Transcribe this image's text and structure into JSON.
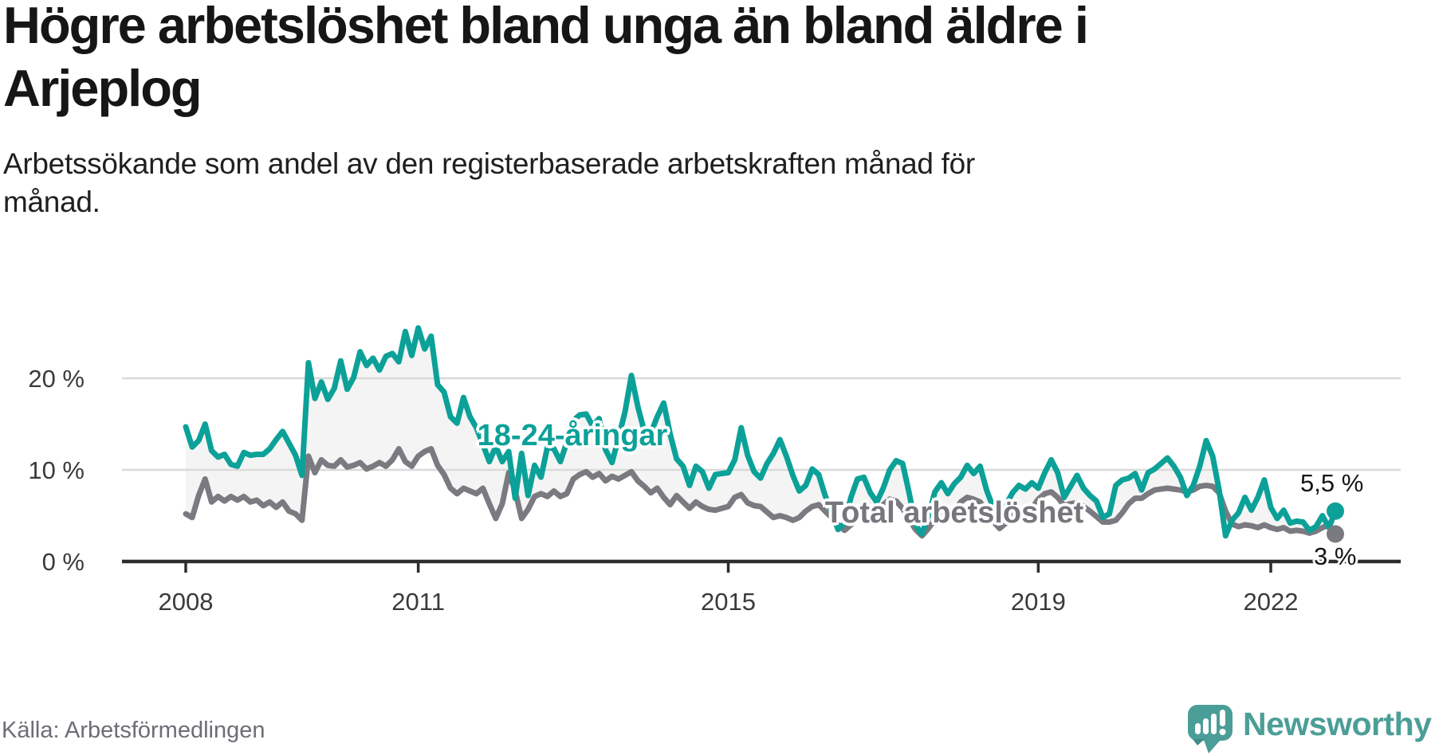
{
  "header": {
    "title_lines": [
      "Högre arbetslöshet bland unga än bland äldre i",
      "Arjeplog"
    ],
    "subtitle_lines": [
      "Arbetssökande som andel av den registerbaserade arbetskraften månad för",
      "månad."
    ]
  },
  "footer": {
    "source": "Källa: Arbetsförmedlingen",
    "brand": "Newsworthy"
  },
  "colors": {
    "youth": "#0ca198",
    "total": "#7a7a80",
    "band": "#f4f4f4",
    "grid": "#d9d9d9",
    "axis": "#2d2d2d",
    "tick_text": "#3a3a3a",
    "brand_teal": "#4b9e97"
  },
  "chart_data": {
    "type": "line",
    "title": "Högre arbetslöshet bland unga än bland äldre i Arjeplog",
    "subtitle": "Arbetssökande som andel av den registerbaserade arbetskraften månad för månad.",
    "x_start": "2008-01",
    "x_end": "2022-11",
    "x_unit": "month",
    "ylim": [
      0,
      27
    ],
    "grid": "horizontal",
    "legend": "inline-labels",
    "x_ticks": [
      {
        "label": "2008",
        "m": 0
      },
      {
        "label": "2011",
        "m": 36
      },
      {
        "label": "2015",
        "m": 84
      },
      {
        "label": "2019",
        "m": 132
      },
      {
        "label": "2022",
        "m": 168
      }
    ],
    "y_ticks": [
      {
        "label": "0 %",
        "v": 0
      },
      {
        "label": "10 %",
        "v": 10
      },
      {
        "label": "20 %",
        "v": 20
      }
    ],
    "series": [
      {
        "name": "18-24-åringar",
        "color": "#0ca198",
        "end_label": "5,5 %",
        "end_value": 5.5,
        "values": [
          14.7,
          12.5,
          13.2,
          15.0,
          12.1,
          11.4,
          11.7,
          10.6,
          10.4,
          11.9,
          11.6,
          11.7,
          11.7,
          12.3,
          13.3,
          14.2,
          12.9,
          11.6,
          9.4,
          21.7,
          17.8,
          19.6,
          17.7,
          18.9,
          21.9,
          18.8,
          20.1,
          22.9,
          21.4,
          22.2,
          20.9,
          22.4,
          22.7,
          21.8,
          25.1,
          22.5,
          25.5,
          23.2,
          24.6,
          19.3,
          18.5,
          15.8,
          15.1,
          17.9,
          15.8,
          14.6,
          12.8,
          10.9,
          12.6,
          10.9,
          12.0,
          6.9,
          11.8,
          7.2,
          10.5,
          9.2,
          12.5,
          12.3,
          10.9,
          13.0,
          15.4,
          16.0,
          16.1,
          14.8,
          15.6,
          12.2,
          10.8,
          13.5,
          16.3,
          20.3,
          16.9,
          14.2,
          14.0,
          15.8,
          17.3,
          13.9,
          11.2,
          10.4,
          8.3,
          10.4,
          9.8,
          8.0,
          9.5,
          9.6,
          9.7,
          11.1,
          14.6,
          11.6,
          9.8,
          9.1,
          10.7,
          11.8,
          13.3,
          11.5,
          9.4,
          7.7,
          8.3,
          10.1,
          9.5,
          7.2,
          5.5,
          3.5,
          4.2,
          7.0,
          9.0,
          9.2,
          7.5,
          6.5,
          8.0,
          10.0,
          11.0,
          10.7,
          7.5,
          4.0,
          3.0,
          5.0,
          7.6,
          8.6,
          7.4,
          8.5,
          9.2,
          10.5,
          9.6,
          10.4,
          7.8,
          5.9,
          4.5,
          6.2,
          7.5,
          8.3,
          7.9,
          8.6,
          8.0,
          9.7,
          11.1,
          9.7,
          7.0,
          8.2,
          9.4,
          8.0,
          7.2,
          6.6,
          4.8,
          5.2,
          8.3,
          8.9,
          9.1,
          9.6,
          7.8,
          9.7,
          10.1,
          10.7,
          11.3,
          10.4,
          9.2,
          7.2,
          8.3,
          10.4,
          13.2,
          11.5,
          7.8,
          2.8,
          4.5,
          5.3,
          7.0,
          5.6,
          7.0,
          8.9,
          5.9,
          4.7,
          5.6,
          4.2,
          4.4,
          4.3,
          3.4,
          3.8,
          5.0,
          3.7,
          5.5
        ]
      },
      {
        "name": "Total arbetslöshet",
        "color": "#7a7a80",
        "end_label": "3 %",
        "end_value": 3.0,
        "values": [
          5.2,
          4.8,
          7.2,
          9.0,
          6.5,
          7.1,
          6.6,
          7.1,
          6.7,
          7.1,
          6.5,
          6.7,
          6.1,
          6.5,
          5.9,
          6.5,
          5.5,
          5.2,
          4.5,
          11.5,
          9.7,
          11.1,
          10.5,
          10.4,
          11.1,
          10.3,
          10.5,
          10.8,
          10.1,
          10.4,
          10.8,
          10.4,
          11.1,
          12.3,
          10.9,
          10.4,
          11.5,
          12.0,
          12.3,
          10.5,
          9.5,
          8.0,
          7.4,
          8.0,
          7.7,
          7.4,
          8.0,
          6.3,
          4.7,
          6.3,
          9.7,
          7.7,
          4.7,
          5.7,
          7.1,
          7.4,
          7.1,
          7.7,
          7.1,
          7.4,
          9.0,
          9.5,
          9.8,
          9.2,
          9.6,
          8.8,
          9.3,
          9.0,
          9.4,
          9.8,
          8.8,
          8.2,
          7.5,
          8.0,
          7.0,
          6.2,
          7.2,
          6.5,
          5.8,
          6.5,
          6.0,
          5.7,
          5.6,
          5.8,
          6.0,
          7.0,
          7.3,
          6.4,
          6.1,
          6.0,
          5.4,
          4.8,
          5.0,
          4.8,
          4.5,
          4.8,
          5.5,
          6.0,
          6.2,
          5.5,
          4.8,
          4.0,
          3.4,
          4.0,
          4.8,
          5.2,
          5.0,
          5.2,
          6.2,
          6.8,
          6.6,
          5.8,
          4.6,
          3.5,
          2.8,
          3.6,
          4.6,
          5.4,
          5.2,
          5.5,
          6.5,
          7.0,
          6.8,
          6.5,
          5.4,
          4.4,
          3.6,
          4.2,
          5.0,
          5.5,
          5.3,
          5.8,
          6.8,
          7.4,
          7.6,
          7.0,
          6.1,
          6.3,
          6.4,
          6.0,
          5.5,
          4.9,
          4.3,
          4.3,
          4.5,
          5.3,
          6.3,
          6.9,
          6.9,
          7.4,
          7.8,
          7.9,
          8.0,
          7.9,
          7.8,
          7.6,
          7.8,
          8.2,
          8.3,
          8.2,
          7.5,
          5.5,
          4.1,
          3.8,
          4.0,
          3.9,
          3.7,
          4.0,
          3.7,
          3.5,
          3.7,
          3.3,
          3.4,
          3.3,
          3.1,
          3.3,
          3.7,
          4.0,
          3.0
        ]
      }
    ]
  }
}
